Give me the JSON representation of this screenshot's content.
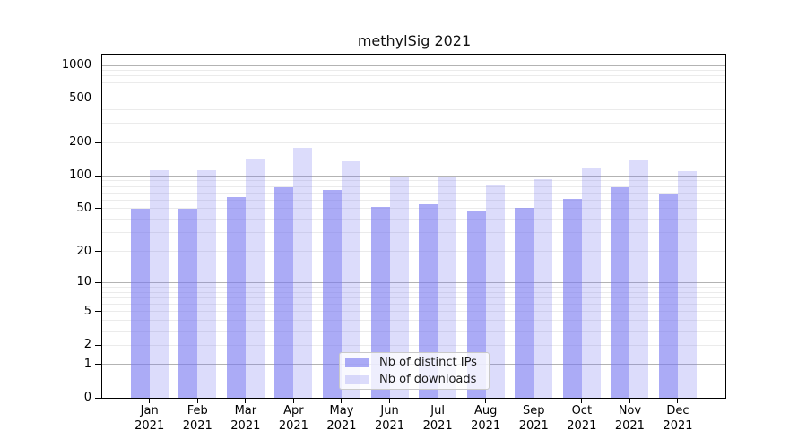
{
  "title": "methylSig 2021",
  "chart_data": {
    "type": "bar",
    "title": "methylSig 2021",
    "year": "2021",
    "months": [
      "Jan",
      "Feb",
      "Mar",
      "Apr",
      "May",
      "Jun",
      "Jul",
      "Aug",
      "Sep",
      "Oct",
      "Nov",
      "Dec"
    ],
    "categories": [
      "Jan 2021",
      "Feb 2021",
      "Mar 2021",
      "Apr 2021",
      "May 2021",
      "Jun 2021",
      "Jul 2021",
      "Aug 2021",
      "Sep 2021",
      "Oct 2021",
      "Nov 2021",
      "Dec 2021"
    ],
    "series": [
      {
        "name": "Nb of distinct IPs",
        "color": "#ababf2",
        "values": [
          50,
          50,
          64,
          78,
          74,
          52,
          55,
          48,
          51,
          62,
          78,
          69
        ]
      },
      {
        "name": "Nb of downloads",
        "color": "#dcdcf9",
        "values": [
          113,
          113,
          143,
          181,
          136,
          96,
          96,
          83,
          93,
          119,
          139,
          111
        ]
      }
    ],
    "yticks": [
      0,
      1,
      2,
      5,
      10,
      20,
      50,
      100,
      200,
      500,
      1000
    ],
    "yscale": "log1p",
    "ylim": [
      0,
      1283
    ],
    "grid": true,
    "legend_position": "inside lower center"
  },
  "colors": {
    "bar_distinct_ips": "#ababf2",
    "bar_downloads": "#dcdcf9",
    "grid_major": "#b3b3b3",
    "grid_minor": "#ebebeb",
    "axis": "#000000",
    "background": "#ffffff"
  }
}
